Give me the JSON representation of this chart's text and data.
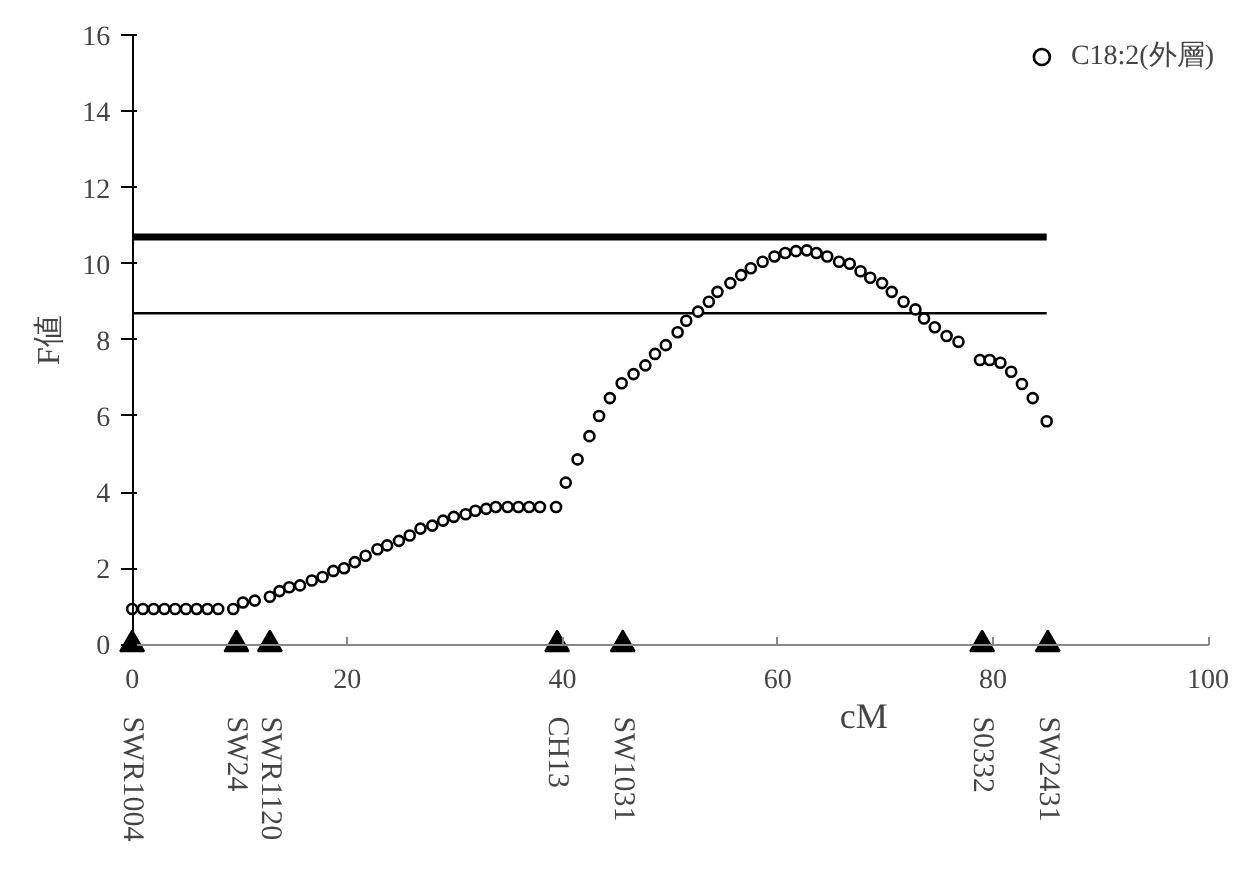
{
  "chart_data": {
    "type": "scatter",
    "xlabel": "cM",
    "ylabel": "F値",
    "x": [
      0,
      1,
      2,
      3,
      4,
      5,
      6,
      7,
      8,
      9.4,
      10.3,
      11.4,
      12.8,
      13.7,
      14.6,
      15.6,
      16.7,
      17.7,
      18.7,
      19.7,
      20.7,
      21.7,
      22.8,
      23.7,
      24.8,
      25.8,
      26.8,
      27.9,
      28.9,
      29.9,
      31,
      31.9,
      32.9,
      33.8,
      34.9,
      35.9,
      36.9,
      37.9,
      39.4,
      40.3,
      41.4,
      42.5,
      43.4,
      44.4,
      45.5,
      46.6,
      47.7,
      48.6,
      49.6,
      50.7,
      51.5,
      52.6,
      53.6,
      54.4,
      55.6,
      56.6,
      57.5,
      58.6,
      59.7,
      60.7,
      61.7,
      62.7,
      63.6,
      64.6,
      65.7,
      66.7,
      67.7,
      68.6,
      69.7,
      70.6,
      71.7,
      72.8,
      73.6,
      74.6,
      75.7,
      76.8,
      78.8,
      79.7,
      80.7,
      81.7,
      82.7,
      83.7,
      85
    ],
    "series": [
      {
        "name": "C18:2(外層)",
        "type": "scatter",
        "marker": "circle",
        "color": "#000000",
        "values": [
          0.93,
          0.93,
          0.93,
          0.93,
          0.93,
          0.93,
          0.93,
          0.93,
          0.93,
          0.93,
          1.1,
          1.15,
          1.25,
          1.4,
          1.5,
          1.55,
          1.68,
          1.77,
          1.93,
          2.0,
          2.16,
          2.33,
          2.5,
          2.6,
          2.72,
          2.86,
          3.04,
          3.12,
          3.25,
          3.35,
          3.42,
          3.51,
          3.56,
          3.61,
          3.61,
          3.61,
          3.61,
          3.61,
          3.61,
          4.25,
          4.86,
          5.47,
          6.0,
          6.47,
          6.86,
          7.1,
          7.33,
          7.63,
          7.86,
          8.2,
          8.5,
          8.74,
          9.0,
          9.26,
          9.49,
          9.7,
          9.88,
          10.05,
          10.19,
          10.28,
          10.33,
          10.35,
          10.28,
          10.19,
          10.05,
          10.0,
          9.8,
          9.63,
          9.49,
          9.26,
          9.0,
          8.8,
          8.56,
          8.33,
          8.1,
          7.95,
          7.47,
          7.47,
          7.4,
          7.16,
          6.84,
          6.47,
          5.86
        ]
      },
      {
        "type": "scatter",
        "marker": "triangle",
        "color": "#000000",
        "x": [
          0,
          9.7,
          12.8,
          39.5,
          45.6,
          79,
          85.1
        ],
        "values": [
          0,
          0,
          0,
          0,
          0,
          0,
          0
        ]
      }
    ],
    "annotations": [
      {
        "text": "SWR1004",
        "x": 0,
        "y": 0
      },
      {
        "text": "SW24",
        "x": 9.7,
        "y": 0
      },
      {
        "text": "SWR1120",
        "x": 12.8,
        "y": 0
      },
      {
        "text": "CH13",
        "x": 39.5,
        "y": 0
      },
      {
        "text": "SW1031",
        "x": 45.6,
        "y": 0
      },
      {
        "text": "S0332",
        "x": 79,
        "y": 0
      },
      {
        "text": "SW2431",
        "x": 85.1,
        "y": 0
      }
    ],
    "ref_lines": [
      {
        "axis": "y",
        "value": 10.7,
        "color": "#000000",
        "line_style": "solid"
      },
      {
        "axis": "y",
        "value": 8.7,
        "color": "#000000",
        "line_style": "solid"
      }
    ],
    "xlim": [
      0,
      100
    ],
    "xticks": [
      0,
      20,
      40,
      60,
      80,
      100
    ],
    "ylim": [
      0,
      16
    ],
    "yticks": [
      0,
      2,
      4,
      6,
      8,
      10,
      12,
      14,
      16
    ],
    "grid": false,
    "legend": "top right"
  }
}
